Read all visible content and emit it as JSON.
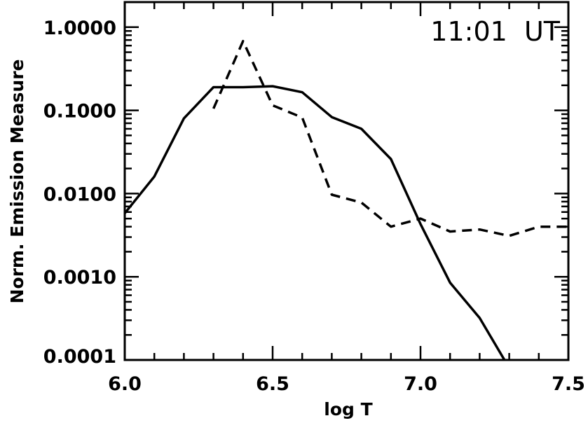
{
  "chart_data": {
    "type": "line",
    "title": "",
    "xlabel": "log T",
    "ylabel": "Norm. Emission Measure",
    "annotation": "11:01  UT",
    "xlim": [
      6.0,
      7.5
    ],
    "ylim": [
      0.0001,
      2.0
    ],
    "yscale": "log",
    "grid": false,
    "xticks": [
      6.0,
      6.5,
      7.0,
      7.5
    ],
    "xtick_labels": [
      "6.0",
      "6.5",
      "7.0",
      "7.5"
    ],
    "yticks": [
      0.0001,
      0.001,
      0.01,
      0.1,
      1.0
    ],
    "ytick_labels": [
      "0.0001",
      "0.0010",
      "0.0100",
      "0.1000",
      "1.0000"
    ],
    "series": [
      {
        "style": "solid",
        "color": "#000000",
        "x": [
          6.0,
          6.1,
          6.2,
          6.3,
          6.4,
          6.5,
          6.6,
          6.7,
          6.8,
          6.9,
          7.0,
          7.1,
          7.2,
          7.3
        ],
        "y": [
          0.0058,
          0.016,
          0.08,
          0.19,
          0.19,
          0.195,
          0.165,
          0.083,
          0.06,
          0.026,
          0.0043,
          0.00085,
          0.00032,
          8e-05
        ]
      },
      {
        "style": "dashed",
        "color": "#000000",
        "x": [
          6.3,
          6.4,
          6.5,
          6.6,
          6.7,
          6.8,
          6.9,
          7.0,
          7.1,
          7.2,
          7.3,
          7.4,
          7.5
        ],
        "y": [
          0.105,
          0.68,
          0.115,
          0.082,
          0.0097,
          0.0078,
          0.004,
          0.005,
          0.0035,
          0.0037,
          0.0031,
          0.004,
          0.004
        ]
      }
    ]
  }
}
